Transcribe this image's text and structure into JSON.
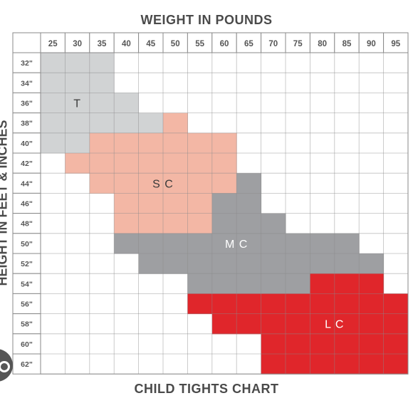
{
  "chart_data": {
    "type": "table",
    "title": "WEIGHT IN POUNDS",
    "footer_title": "CHILD TIGHTS CHART",
    "xlabel": "WEIGHT IN POUNDS",
    "ylabel": "HEIGHT IN FEET & INCHES",
    "columns": [
      "25",
      "30",
      "35",
      "40",
      "45",
      "50",
      "55",
      "60",
      "65",
      "70",
      "75",
      "80",
      "85",
      "90",
      "95"
    ],
    "rows": [
      "32\"",
      "34\"",
      "36\"",
      "38\"",
      "40\"",
      "42\"",
      "44\"",
      "46\"",
      "48\"",
      "50\"",
      "52\"",
      "54\"",
      "56\"",
      "58\"",
      "60\"",
      "62\""
    ],
    "grid": true,
    "sizes": [
      {
        "label": "T",
        "color": "#d1d3d4",
        "cells": [
          [
            0,
            0
          ],
          [
            0,
            1
          ],
          [
            0,
            2
          ],
          [
            1,
            0
          ],
          [
            1,
            1
          ],
          [
            1,
            2
          ],
          [
            2,
            0
          ],
          [
            2,
            1
          ],
          [
            2,
            2
          ],
          [
            2,
            3
          ],
          [
            3,
            0
          ],
          [
            3,
            1
          ],
          [
            3,
            2
          ],
          [
            3,
            3
          ],
          [
            3,
            4
          ],
          [
            4,
            0
          ],
          [
            4,
            1
          ]
        ]
      },
      {
        "label": "S  C",
        "color": "#f3b7a5",
        "cells": [
          [
            3,
            5
          ],
          [
            4,
            2
          ],
          [
            4,
            3
          ],
          [
            4,
            4
          ],
          [
            4,
            5
          ],
          [
            4,
            6
          ],
          [
            4,
            7
          ],
          [
            5,
            1
          ],
          [
            5,
            2
          ],
          [
            5,
            3
          ],
          [
            5,
            4
          ],
          [
            5,
            5
          ],
          [
            5,
            6
          ],
          [
            5,
            7
          ],
          [
            6,
            2
          ],
          [
            6,
            3
          ],
          [
            6,
            4
          ],
          [
            6,
            5
          ],
          [
            6,
            6
          ],
          [
            6,
            7
          ],
          [
            7,
            3
          ],
          [
            7,
            4
          ],
          [
            7,
            5
          ],
          [
            7,
            6
          ],
          [
            8,
            3
          ],
          [
            8,
            4
          ],
          [
            8,
            5
          ],
          [
            8,
            6
          ]
        ]
      },
      {
        "label": "M  C",
        "color": "#9e9fa2",
        "cells": [
          [
            6,
            8
          ],
          [
            7,
            7
          ],
          [
            7,
            8
          ],
          [
            8,
            7
          ],
          [
            8,
            8
          ],
          [
            8,
            9
          ],
          [
            9,
            3
          ],
          [
            9,
            4
          ],
          [
            9,
            5
          ],
          [
            9,
            6
          ],
          [
            9,
            7
          ],
          [
            9,
            8
          ],
          [
            9,
            9
          ],
          [
            9,
            10
          ],
          [
            9,
            11
          ],
          [
            9,
            12
          ],
          [
            10,
            4
          ],
          [
            10,
            5
          ],
          [
            10,
            6
          ],
          [
            10,
            7
          ],
          [
            10,
            8
          ],
          [
            10,
            9
          ],
          [
            10,
            10
          ],
          [
            10,
            11
          ],
          [
            10,
            12
          ],
          [
            10,
            13
          ],
          [
            11,
            6
          ],
          [
            11,
            7
          ],
          [
            11,
            8
          ],
          [
            11,
            9
          ],
          [
            11,
            10
          ]
        ]
      },
      {
        "label": "L  C",
        "color": "#e0262b",
        "cells": [
          [
            11,
            11
          ],
          [
            11,
            12
          ],
          [
            11,
            13
          ],
          [
            12,
            6
          ],
          [
            12,
            7
          ],
          [
            12,
            8
          ],
          [
            12,
            9
          ],
          [
            12,
            10
          ],
          [
            12,
            11
          ],
          [
            12,
            12
          ],
          [
            12,
            13
          ],
          [
            12,
            14
          ],
          [
            13,
            7
          ],
          [
            13,
            8
          ],
          [
            13,
            9
          ],
          [
            13,
            10
          ],
          [
            13,
            11
          ],
          [
            13,
            12
          ],
          [
            13,
            13
          ],
          [
            13,
            14
          ],
          [
            14,
            9
          ],
          [
            14,
            10
          ],
          [
            14,
            11
          ],
          [
            14,
            12
          ],
          [
            14,
            13
          ],
          [
            14,
            14
          ],
          [
            15,
            9
          ],
          [
            15,
            10
          ],
          [
            15,
            11
          ],
          [
            15,
            12
          ],
          [
            15,
            13
          ],
          [
            15,
            14
          ]
        ]
      }
    ]
  }
}
